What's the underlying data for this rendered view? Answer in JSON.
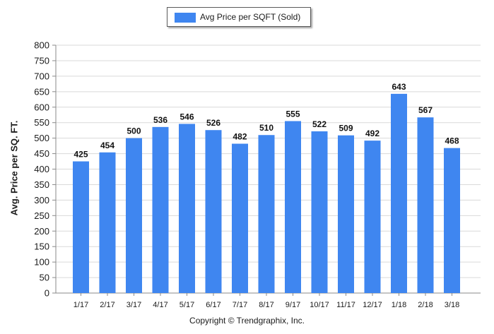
{
  "legend": {
    "label": "Avg Price per SQFT (Sold)"
  },
  "footer": {
    "copyright": "Copyright © Trendgraphix, Inc."
  },
  "chart_data": {
    "type": "bar",
    "categories": [
      "1/17",
      "2/17",
      "3/17",
      "4/17",
      "5/17",
      "6/17",
      "7/17",
      "8/17",
      "9/17",
      "10/17",
      "11/17",
      "12/17",
      "1/18",
      "2/18",
      "3/18"
    ],
    "series": [
      {
        "name": "Avg Price per SQFT (Sold)",
        "values": [
          425,
          454,
          500,
          536,
          546,
          526,
          482,
          510,
          555,
          522,
          509,
          492,
          643,
          567,
          468
        ]
      }
    ],
    "ylabel": "Avg. Price per SQ. FT.",
    "xlabel": "",
    "ylim": [
      0,
      800
    ],
    "yticks": [
      0,
      50,
      100,
      150,
      200,
      250,
      300,
      350,
      400,
      450,
      500,
      550,
      600,
      650,
      700,
      750,
      800
    ],
    "grid": true,
    "legend_position": "top-center",
    "bar_color": "#3f86f0",
    "data_labels": true
  }
}
